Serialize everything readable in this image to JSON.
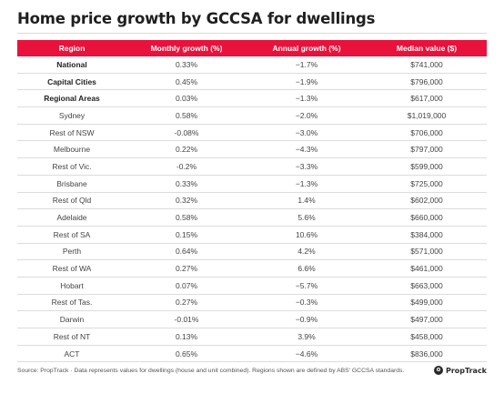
{
  "title": "Home price growth by GCCSA for dwellings",
  "table": {
    "headers": {
      "region": "Region",
      "monthly": "Monthly growth (%)",
      "annual": "Annual growth (%)",
      "median": "Median value ($)"
    },
    "rows": [
      {
        "region": "National",
        "monthly": "0.33%",
        "annual": "−1.7%",
        "median": "$741,000",
        "bold": true
      },
      {
        "region": "Capital Cities",
        "monthly": "0.45%",
        "annual": "−1.9%",
        "median": "$796,000",
        "bold": true
      },
      {
        "region": "Regional Areas",
        "monthly": "0.03%",
        "annual": "−1.3%",
        "median": "$617,000",
        "bold": true
      },
      {
        "region": "Sydney",
        "monthly": "0.58%",
        "annual": "−2.0%",
        "median": "$1,019,000",
        "bold": false
      },
      {
        "region": "Rest of NSW",
        "monthly": "-0.08%",
        "annual": "−3.0%",
        "median": "$706,000",
        "bold": false
      },
      {
        "region": "Melbourne",
        "monthly": "0.22%",
        "annual": "−4.3%",
        "median": "$797,000",
        "bold": false
      },
      {
        "region": "Rest of Vic.",
        "monthly": "-0.2%",
        "annual": "−3.3%",
        "median": "$599,000",
        "bold": false
      },
      {
        "region": "Brisbane",
        "monthly": "0.33%",
        "annual": "−1.3%",
        "median": "$725,000",
        "bold": false
      },
      {
        "region": "Rest of Qld",
        "monthly": "0.32%",
        "annual": "1.4%",
        "median": "$602,000",
        "bold": false
      },
      {
        "region": "Adelaide",
        "monthly": "0.58%",
        "annual": "5.6%",
        "median": "$660,000",
        "bold": false
      },
      {
        "region": "Rest of SA",
        "monthly": "0.15%",
        "annual": "10.6%",
        "median": "$384,000",
        "bold": false
      },
      {
        "region": "Perth",
        "monthly": "0.64%",
        "annual": "4.2%",
        "median": "$571,000",
        "bold": false
      },
      {
        "region": "Rest of WA",
        "monthly": "0.27%",
        "annual": "6.6%",
        "median": "$461,000",
        "bold": false
      },
      {
        "region": "Hobart",
        "monthly": "0.07%",
        "annual": "−5.7%",
        "median": "$663,000",
        "bold": false
      },
      {
        "region": "Rest of Tas.",
        "monthly": "0.27%",
        "annual": "−0.3%",
        "median": "$499,000",
        "bold": false
      },
      {
        "region": "Darwin",
        "monthly": "-0.01%",
        "annual": "−0.9%",
        "median": "$497,000",
        "bold": false
      },
      {
        "region": "Rest of NT",
        "monthly": "0.13%",
        "annual": "3.9%",
        "median": "$458,000",
        "bold": false
      },
      {
        "region": "ACT",
        "monthly": "0.65%",
        "annual": "−4.6%",
        "median": "$836,000",
        "bold": false
      }
    ]
  },
  "footnote": "Source: PropTrack · Data represents values for dwellings (house and unit combined). Regions shown are defined by ABS' GCCSA standards.",
  "brand": {
    "name": "PropTrack",
    "icon": "proptrack-logo-icon"
  },
  "colors": {
    "header_bg": "#e8123c",
    "header_text": "#ffffff",
    "row_border": "#dcdcdc",
    "title_text": "#1f1f1f"
  }
}
